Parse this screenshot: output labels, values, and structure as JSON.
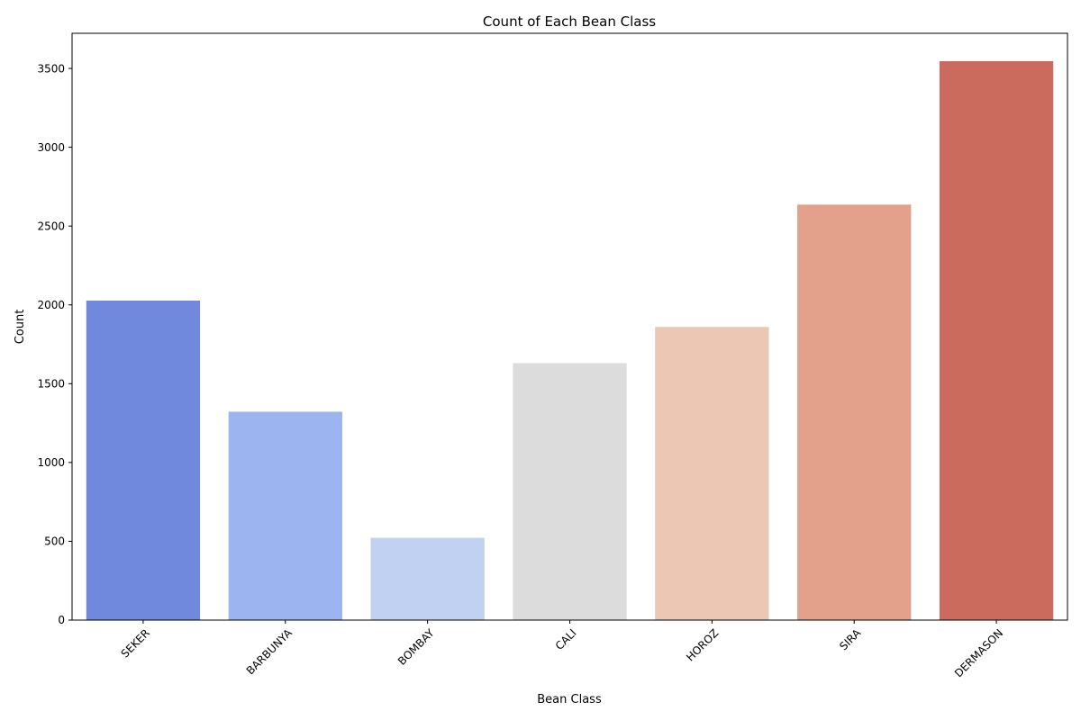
{
  "chart_data": {
    "type": "bar",
    "title": "Count of Each Bean Class",
    "xlabel": "Bean Class",
    "ylabel": "Count",
    "categories": [
      "SEKER",
      "BARBUNYA",
      "BOMBAY",
      "CALI",
      "HOROZ",
      "SIRA",
      "DERMASON"
    ],
    "values": [
      2027,
      1322,
      522,
      1630,
      1860,
      2636,
      3546
    ],
    "colors": [
      "#7089dc",
      "#9cb5f1",
      "#c0d1f1",
      "#dcdcdc",
      "#ebc7b4",
      "#e3a08a",
      "#cb6b5e"
    ],
    "ylim": [
      0,
      3723
    ],
    "yticks": [
      0,
      500,
      1000,
      1500,
      2000,
      2500,
      3000,
      3500
    ],
    "xtick_rotation": 45,
    "grid": false,
    "legend": "none"
  }
}
